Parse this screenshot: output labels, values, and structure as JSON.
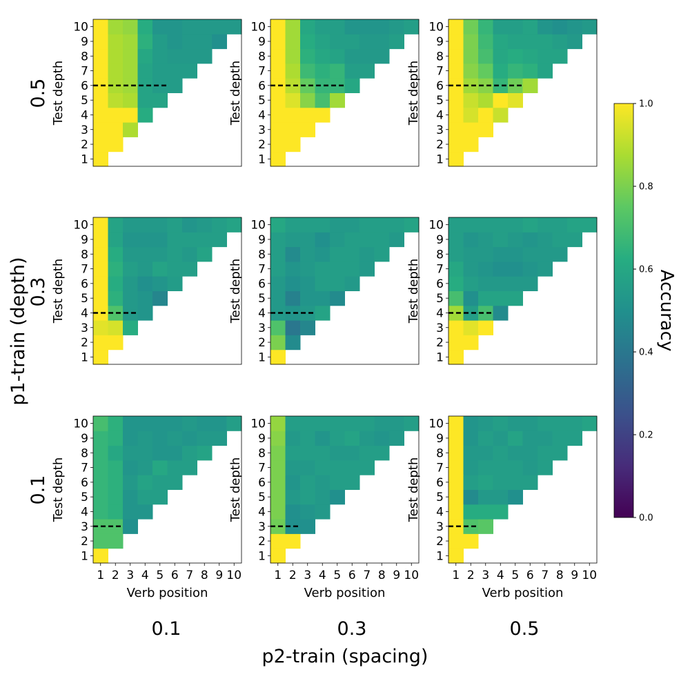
{
  "figure": {
    "x_super_label": "p2-train (spacing)",
    "y_super_label": "p1-train (depth)",
    "col_labels": [
      "0.1",
      "0.3",
      "0.5"
    ],
    "row_labels": [
      "0.5",
      "0.3",
      "0.1"
    ],
    "panel_xlabel": "Verb position",
    "panel_ylabel": "Test depth"
  },
  "colorbar": {
    "label": "Accuracy",
    "range": [
      0.0,
      1.0
    ],
    "ticks": [
      "0.0",
      "0.2",
      "0.4",
      "0.6",
      "0.8",
      "1.0"
    ],
    "colormap": "viridis"
  },
  "chart_data": [
    {
      "type": "heatmap",
      "p1_train": "0.5",
      "p2_train": "0.1",
      "train_depth_boundary": 5.5,
      "x_ticks": [
        1,
        2,
        3,
        4,
        5,
        6,
        7,
        8,
        9,
        10
      ],
      "y_ticks": [
        1,
        2,
        3,
        4,
        5,
        6,
        7,
        8,
        9,
        10
      ],
      "rows": [
        [
          1.0
        ],
        [
          1.0,
          1.0
        ],
        [
          1.0,
          1.0,
          0.88
        ],
        [
          1.0,
          1.0,
          1.0,
          0.62
        ],
        [
          1.0,
          0.9,
          0.88,
          0.58,
          0.58
        ],
        [
          1.0,
          0.88,
          0.86,
          0.58,
          0.55,
          0.55
        ],
        [
          1.0,
          0.88,
          0.86,
          0.58,
          0.55,
          0.55,
          0.55
        ],
        [
          1.0,
          0.88,
          0.86,
          0.6,
          0.55,
          0.54,
          0.54,
          0.54
        ],
        [
          1.0,
          0.88,
          0.86,
          0.64,
          0.55,
          0.52,
          0.54,
          0.54,
          0.5
        ],
        [
          1.0,
          0.86,
          0.84,
          0.62,
          0.52,
          0.52,
          0.54,
          0.54,
          0.54,
          0.54
        ]
      ]
    },
    {
      "type": "heatmap",
      "p1_train": "0.5",
      "p2_train": "0.3",
      "train_depth_boundary": 5.5,
      "x_ticks": [
        1,
        2,
        3,
        4,
        5,
        6,
        7,
        8,
        9,
        10
      ],
      "y_ticks": [
        1,
        2,
        3,
        4,
        5,
        6,
        7,
        8,
        9,
        10
      ],
      "rows": [
        [
          1.0
        ],
        [
          1.0,
          1.0
        ],
        [
          1.0,
          1.0,
          1.0
        ],
        [
          1.0,
          1.0,
          1.0,
          1.0
        ],
        [
          1.0,
          0.95,
          0.82,
          0.7,
          0.86
        ],
        [
          1.0,
          0.9,
          0.76,
          0.66,
          0.66,
          0.6
        ],
        [
          1.0,
          0.88,
          0.68,
          0.64,
          0.66,
          0.56,
          0.56
        ],
        [
          1.0,
          0.86,
          0.64,
          0.6,
          0.58,
          0.54,
          0.54,
          0.54
        ],
        [
          1.0,
          0.86,
          0.62,
          0.58,
          0.56,
          0.56,
          0.54,
          0.54,
          0.56
        ],
        [
          1.0,
          0.86,
          0.6,
          0.56,
          0.56,
          0.52,
          0.52,
          0.52,
          0.54,
          0.56
        ]
      ]
    },
    {
      "type": "heatmap",
      "p1_train": "0.5",
      "p2_train": "0.5",
      "train_depth_boundary": 5.5,
      "x_ticks": [
        1,
        2,
        3,
        4,
        5,
        6,
        7,
        8,
        9,
        10
      ],
      "y_ticks": [
        1,
        2,
        3,
        4,
        5,
        6,
        7,
        8,
        9,
        10
      ],
      "rows": [
        [
          1.0
        ],
        [
          1.0,
          1.0
        ],
        [
          1.0,
          1.0,
          1.0
        ],
        [
          1.0,
          0.94,
          1.0,
          0.92
        ],
        [
          1.0,
          0.92,
          0.88,
          1.0,
          0.96
        ],
        [
          1.0,
          0.86,
          0.82,
          0.66,
          0.78,
          0.86
        ],
        [
          1.0,
          0.82,
          0.76,
          0.62,
          0.66,
          0.64,
          0.58
        ],
        [
          1.0,
          0.8,
          0.7,
          0.6,
          0.62,
          0.6,
          0.58,
          0.58
        ],
        [
          1.0,
          0.8,
          0.68,
          0.6,
          0.58,
          0.58,
          0.58,
          0.56,
          0.54
        ],
        [
          1.0,
          0.78,
          0.66,
          0.56,
          0.56,
          0.58,
          0.52,
          0.5,
          0.52,
          0.54
        ]
      ]
    },
    {
      "type": "heatmap",
      "p1_train": "0.3",
      "p2_train": "0.1",
      "train_depth_boundary": 3.5,
      "x_ticks": [
        1,
        2,
        3,
        4,
        5,
        6,
        7,
        8,
        9,
        10
      ],
      "y_ticks": [
        1,
        2,
        3,
        4,
        5,
        6,
        7,
        8,
        9,
        10
      ],
      "rows": [
        [
          1.0
        ],
        [
          1.0,
          1.0
        ],
        [
          0.96,
          0.94,
          0.62
        ],
        [
          1.0,
          0.72,
          0.54,
          0.52
        ],
        [
          1.0,
          0.64,
          0.54,
          0.52,
          0.46
        ],
        [
          1.0,
          0.62,
          0.54,
          0.5,
          0.52,
          0.55
        ],
        [
          1.0,
          0.64,
          0.56,
          0.54,
          0.58,
          0.56,
          0.56
        ],
        [
          1.0,
          0.62,
          0.54,
          0.54,
          0.54,
          0.56,
          0.54,
          0.58
        ],
        [
          1.0,
          0.58,
          0.52,
          0.52,
          0.52,
          0.56,
          0.56,
          0.56,
          0.56
        ],
        [
          1.0,
          0.58,
          0.54,
          0.54,
          0.54,
          0.56,
          0.52,
          0.54,
          0.56,
          0.58
        ]
      ]
    },
    {
      "type": "heatmap",
      "p1_train": "0.3",
      "p2_train": "0.3",
      "train_depth_boundary": 3.5,
      "x_ticks": [
        1,
        2,
        3,
        4,
        5,
        6,
        7,
        8,
        9,
        10
      ],
      "y_ticks": [
        1,
        2,
        3,
        4,
        5,
        6,
        7,
        8,
        9,
        10
      ],
      "rows": [
        [
          1.0
        ],
        [
          0.8,
          0.48
        ],
        [
          0.72,
          0.4,
          0.46
        ],
        [
          0.54,
          0.52,
          0.54,
          0.58
        ],
        [
          0.54,
          0.44,
          0.52,
          0.52,
          0.48
        ],
        [
          0.54,
          0.5,
          0.52,
          0.56,
          0.56,
          0.54
        ],
        [
          0.56,
          0.52,
          0.54,
          0.56,
          0.56,
          0.56,
          0.54
        ],
        [
          0.56,
          0.48,
          0.54,
          0.52,
          0.56,
          0.56,
          0.54,
          0.56
        ],
        [
          0.56,
          0.54,
          0.54,
          0.5,
          0.54,
          0.56,
          0.56,
          0.56,
          0.54
        ],
        [
          0.6,
          0.56,
          0.56,
          0.56,
          0.54,
          0.54,
          0.56,
          0.56,
          0.56,
          0.58
        ]
      ]
    },
    {
      "type": "heatmap",
      "p1_train": "0.3",
      "p2_train": "0.5",
      "train_depth_boundary": 3.5,
      "x_ticks": [
        1,
        2,
        3,
        4,
        5,
        6,
        7,
        8,
        9,
        10
      ],
      "y_ticks": [
        1,
        2,
        3,
        4,
        5,
        6,
        7,
        8,
        9,
        10
      ],
      "rows": [
        [
          1.0
        ],
        [
          1.0,
          1.0
        ],
        [
          1.0,
          0.96,
          1.0
        ],
        [
          0.86,
          0.56,
          0.7,
          0.48
        ],
        [
          0.7,
          0.5,
          0.58,
          0.58,
          0.58
        ],
        [
          0.62,
          0.56,
          0.54,
          0.54,
          0.54,
          0.54
        ],
        [
          0.6,
          0.54,
          0.52,
          0.5,
          0.5,
          0.52,
          0.54
        ],
        [
          0.56,
          0.54,
          0.54,
          0.52,
          0.52,
          0.54,
          0.54,
          0.54
        ],
        [
          0.56,
          0.52,
          0.54,
          0.56,
          0.54,
          0.52,
          0.54,
          0.56,
          0.56
        ],
        [
          0.56,
          0.56,
          0.56,
          0.56,
          0.56,
          0.58,
          0.56,
          0.56,
          0.58,
          0.58
        ]
      ]
    },
    {
      "type": "heatmap",
      "p1_train": "0.1",
      "p2_train": "0.1",
      "train_depth_boundary": 2.5,
      "x_ticks": [
        1,
        2,
        3,
        4,
        5,
        6,
        7,
        8,
        9,
        10
      ],
      "y_ticks": [
        1,
        2,
        3,
        4,
        5,
        6,
        7,
        8,
        9,
        10
      ],
      "rows": [
        [
          1.0
        ],
        [
          0.72,
          0.72
        ],
        [
          0.72,
          0.72,
          0.5
        ],
        [
          0.66,
          0.64,
          0.52,
          0.52
        ],
        [
          0.66,
          0.64,
          0.52,
          0.56,
          0.56
        ],
        [
          0.66,
          0.64,
          0.54,
          0.58,
          0.56,
          0.56
        ],
        [
          0.66,
          0.64,
          0.52,
          0.54,
          0.6,
          0.56,
          0.56
        ],
        [
          0.66,
          0.6,
          0.54,
          0.54,
          0.52,
          0.52,
          0.56,
          0.58
        ],
        [
          0.66,
          0.64,
          0.52,
          0.54,
          0.52,
          0.54,
          0.52,
          0.54,
          0.54
        ],
        [
          0.7,
          0.64,
          0.52,
          0.52,
          0.52,
          0.52,
          0.54,
          0.52,
          0.52,
          0.56
        ]
      ]
    },
    {
      "type": "heatmap",
      "p1_train": "0.1",
      "p2_train": "0.3",
      "train_depth_boundary": 2.5,
      "x_ticks": [
        1,
        2,
        3,
        4,
        5,
        6,
        7,
        8,
        9,
        10
      ],
      "y_ticks": [
        1,
        2,
        3,
        4,
        5,
        6,
        7,
        8,
        9,
        10
      ],
      "rows": [
        [
          1.0
        ],
        [
          1.0,
          1.0
        ],
        [
          0.78,
          0.5,
          0.5
        ],
        [
          0.8,
          0.5,
          0.52,
          0.54
        ],
        [
          0.8,
          0.54,
          0.56,
          0.54,
          0.5
        ],
        [
          0.8,
          0.52,
          0.56,
          0.54,
          0.56,
          0.56
        ],
        [
          0.8,
          0.54,
          0.54,
          0.56,
          0.56,
          0.56,
          0.56
        ],
        [
          0.8,
          0.56,
          0.56,
          0.56,
          0.54,
          0.54,
          0.56,
          0.56
        ],
        [
          0.82,
          0.54,
          0.56,
          0.52,
          0.56,
          0.58,
          0.54,
          0.52,
          0.54
        ],
        [
          0.84,
          0.56,
          0.56,
          0.56,
          0.56,
          0.56,
          0.56,
          0.54,
          0.54,
          0.56
        ]
      ]
    },
    {
      "type": "heatmap",
      "p1_train": "0.1",
      "p2_train": "0.5",
      "train_depth_boundary": 2.5,
      "x_ticks": [
        1,
        2,
        3,
        4,
        5,
        6,
        7,
        8,
        9,
        10
      ],
      "y_ticks": [
        1,
        2,
        3,
        4,
        5,
        6,
        7,
        8,
        9,
        10
      ],
      "rows": [
        [
          1.0
        ],
        [
          1.0,
          1.0
        ],
        [
          1.0,
          0.72,
          0.74
        ],
        [
          1.0,
          0.62,
          0.62,
          0.62
        ],
        [
          1.0,
          0.48,
          0.54,
          0.54,
          0.5
        ],
        [
          1.0,
          0.56,
          0.58,
          0.56,
          0.56,
          0.56
        ],
        [
          1.0,
          0.54,
          0.56,
          0.56,
          0.56,
          0.54,
          0.56
        ],
        [
          1.0,
          0.54,
          0.54,
          0.56,
          0.54,
          0.54,
          0.56,
          0.56
        ],
        [
          1.0,
          0.52,
          0.56,
          0.54,
          0.58,
          0.54,
          0.54,
          0.56,
          0.56
        ],
        [
          1.0,
          0.52,
          0.54,
          0.56,
          0.54,
          0.54,
          0.56,
          0.56,
          0.56,
          0.58
        ]
      ]
    }
  ]
}
